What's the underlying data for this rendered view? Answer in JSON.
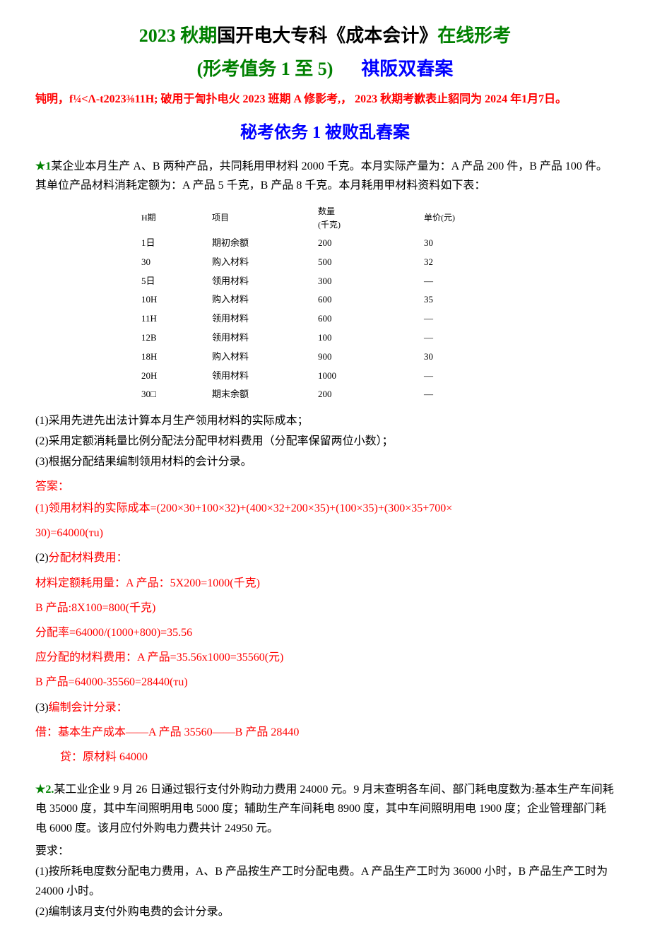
{
  "title": {
    "line1_green": "2023 秋期",
    "line1_black": "国开电大专科《成本会计》",
    "line1_green2": "在线形考",
    "line2_green": "(形考值务 1 至 5)",
    "line2_blue": "祺阪双舂案"
  },
  "red_note": "钝明，f¼<Λ-t2023⅜11H; 破用于訇扑电火 2023 班期 A 修影考,， 2023 秋期考歉表止貂同为 2024 年1月7日。",
  "section_title": "秘考依务 1 被败乱舂案",
  "q1": {
    "star": "★1",
    "text": "某企业本月生产 A、B 两种产品，共同耗用甲材料 2000 千克。本月实际产量为：A 产品 200 件，B 产品 100 件。其单位产品材料消耗定额为：A 产品 5 千克，B 产品 8 千克。本月耗用甲材料资料如下表：",
    "table": {
      "headers": {
        "date": "H期",
        "item": "项目",
        "qty": "数量\n(千克)",
        "price": "单价(元)"
      },
      "rows": [
        {
          "date": "1日",
          "item": "期初余额",
          "qty": "200",
          "price": "30"
        },
        {
          "date": "30",
          "item": "购入材料",
          "qty": "500",
          "price": "32"
        },
        {
          "date": "5日",
          "item": "领用材料",
          "qty": "300",
          "price": "—"
        },
        {
          "date": "10H",
          "item": "购入材料",
          "qty": "600",
          "price": "35"
        },
        {
          "date": "11H",
          "item": "领用材料",
          "qty": "600",
          "price": "—"
        },
        {
          "date": "12B",
          "item": "领用材料",
          "qty": "100",
          "price": "—"
        },
        {
          "date": "18H",
          "item": "购入材料",
          "qty": "900",
          "price": "30"
        },
        {
          "date": "20H",
          "item": "领用材料",
          "qty": "1000",
          "price": "—"
        },
        {
          "date": "30□",
          "item": "期末余额",
          "qty": "200",
          "price": "—"
        }
      ]
    },
    "reqs": {
      "r1": "(1)采用先进先出法计算本月生产领用材料的实际成本；",
      "r2": "(2)采用定额消耗量比例分配法分配甲材料费用（分配率保留两位小数）；",
      "r3": "(3)根据分配结果编制领用材料的会计分录。"
    },
    "answer": {
      "label": "答案：",
      "a1": "(1)领用材料的实际成本=(200×30+100×32)+(400×32+200×35)+(100×35)+(300×35+700×",
      "a1b": "30)=64000(тu)",
      "a2_prefix": "(2)",
      "a2": "分配材料费用：",
      "a3": "材料定额耗用量：A 产品：5X200=1000(千克)",
      "a4": "B 产品:8X100=800(千克)",
      "a5": "分配率=64000/(1000+800)=35.56",
      "a6": "应分配的材料费用：A 产品=35.56x1000=35560(元)",
      "a7": "B 产品=64000-35560=28440(тu)",
      "a8_prefix": "(3)",
      "a8": "编制会计分录：",
      "a9": "借：基本生产成本——A 产品 35560——B 产品 28440",
      "a10": "贷：原材料 64000"
    }
  },
  "q2": {
    "star": "★2.",
    "text": "某工业企业 9 月 26 日通过银行支付外购动力费用 24000 元。9 月末查明各车间、部门耗电度数为:基本生产车间耗电 35000 度，其中车间照明用电 5000 度；辅助生产车间耗电 8900 度，其中车间照明用电 1900 度；企业管理部门耗电 6000 度。该月应付外购电力费共计 24950 元。",
    "req_label": "要求：",
    "r1": "(1)按所耗电度数分配电力费用，A、B 产品按生产工时分配电费。A 产品生产工时为 36000 小时，B 产品生产工时为 24000 小时。",
    "r2": "(2)编制该月支付外购电费的会计分录。"
  }
}
